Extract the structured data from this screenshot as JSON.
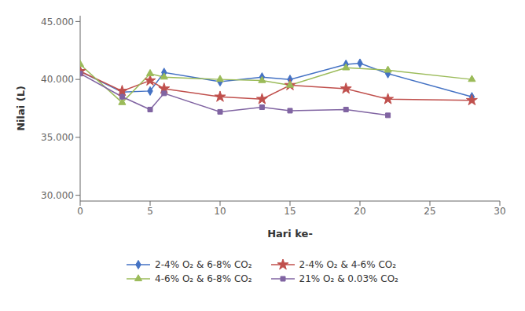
{
  "chart_data": {
    "type": "line",
    "xlabel": "Hari ke-",
    "ylabel": "Nilai (L)",
    "xlim": [
      0,
      30
    ],
    "ylim": [
      29.5,
      45.5
    ],
    "xticks": [
      0,
      5,
      10,
      15,
      20,
      25,
      30
    ],
    "yticks": [
      {
        "value": 30.0,
        "label": "30.000"
      },
      {
        "value": 35.0,
        "label": "35.000"
      },
      {
        "value": 40.0,
        "label": "40.000"
      },
      {
        "value": 45.0,
        "label": "45.000"
      }
    ],
    "grid": false,
    "legend": "bottom",
    "series": [
      {
        "name": "2-4% O₂ & 6-8% CO₂",
        "color": "#4472C4",
        "marker": "diamond",
        "x": [
          0,
          3,
          5,
          6,
          10,
          13,
          15,
          19,
          20,
          22,
          28
        ],
        "values": [
          40.7,
          38.9,
          39.0,
          40.6,
          39.8,
          40.2,
          40.0,
          41.3,
          41.4,
          40.5,
          38.5
        ]
      },
      {
        "name": "2-4% O₂ & 4-6% CO₂",
        "color": "#C0504D",
        "marker": "star",
        "x": [
          0,
          3,
          5,
          6,
          10,
          13,
          15,
          19,
          22,
          28
        ],
        "values": [
          40.7,
          39.0,
          39.9,
          39.2,
          38.5,
          38.3,
          39.5,
          39.2,
          38.3,
          38.2
        ]
      },
      {
        "name": "4-6% O₂ & 6-8% CO₂",
        "color": "#9BBB59",
        "marker": "triangle",
        "x": [
          0,
          3,
          5,
          6,
          10,
          13,
          15,
          19,
          22,
          28
        ],
        "values": [
          41.3,
          38.0,
          40.5,
          40.2,
          40.0,
          39.9,
          39.5,
          41.0,
          40.8,
          40.0
        ]
      },
      {
        "name": "21% O₂ & 0.03% CO₂",
        "color": "#8064A2",
        "marker": "square",
        "x": [
          0,
          3,
          5,
          6,
          10,
          13,
          15,
          19,
          22
        ],
        "values": [
          40.5,
          38.5,
          37.4,
          38.8,
          37.2,
          37.6,
          37.3,
          37.4,
          36.9
        ]
      }
    ]
  }
}
